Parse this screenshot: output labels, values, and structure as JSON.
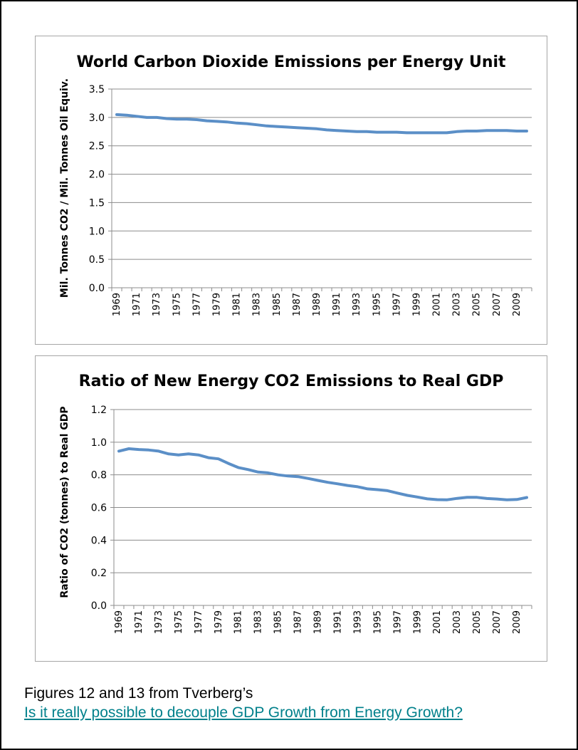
{
  "chart_data": [
    {
      "type": "line",
      "title": "World Carbon Dioxide Emissions per Energy Unit",
      "ylabel": "Mil. Tonnes CO2 / Mil. Tonnes Oil Equiv.",
      "xlabel": "",
      "ylim": [
        0,
        3.5
      ],
      "yticks": [
        "0.0",
        "0.5",
        "1.0",
        "1.5",
        "2.0",
        "2.5",
        "3.0",
        "3.5"
      ],
      "x": [
        1969,
        1970,
        1971,
        1972,
        1973,
        1974,
        1975,
        1976,
        1977,
        1978,
        1979,
        1980,
        1981,
        1982,
        1983,
        1984,
        1985,
        1986,
        1987,
        1988,
        1989,
        1990,
        1991,
        1992,
        1993,
        1994,
        1995,
        1996,
        1997,
        1998,
        1999,
        2000,
        2001,
        2002,
        2003,
        2004,
        2005,
        2006,
        2007,
        2008,
        2009,
        2010
      ],
      "xtick_labels": [
        "1969",
        "1971",
        "1973",
        "1975",
        "1977",
        "1979",
        "1981",
        "1983",
        "1985",
        "1987",
        "1989",
        "1991",
        "1993",
        "1995",
        "1997",
        "1999",
        "2001",
        "2003",
        "2005",
        "2007",
        "2009"
      ],
      "grid": true,
      "legend": "none",
      "line_color": "#5b8fc7",
      "series": [
        {
          "values": [
            3.05,
            3.04,
            3.02,
            3.0,
            3.0,
            2.98,
            2.97,
            2.97,
            2.96,
            2.94,
            2.93,
            2.92,
            2.9,
            2.89,
            2.87,
            2.85,
            2.84,
            2.83,
            2.82,
            2.81,
            2.8,
            2.78,
            2.77,
            2.76,
            2.75,
            2.75,
            2.74,
            2.74,
            2.74,
            2.73,
            2.73,
            2.73,
            2.73,
            2.73,
            2.75,
            2.76,
            2.76,
            2.77,
            2.77,
            2.77,
            2.76,
            2.76
          ]
        }
      ]
    },
    {
      "type": "line",
      "title": "Ratio of New Energy CO2 Emissions to Real GDP",
      "ylabel": "Ratio of CO2 (tonnes) to Real GDP",
      "xlabel": "",
      "ylim": [
        0,
        1.2
      ],
      "yticks": [
        "0.0",
        "0.2",
        "0.4",
        "0.6",
        "0.8",
        "1.0",
        "1.2"
      ],
      "x": [
        1969,
        1970,
        1971,
        1972,
        1973,
        1974,
        1975,
        1976,
        1977,
        1978,
        1979,
        1980,
        1981,
        1982,
        1983,
        1984,
        1985,
        1986,
        1987,
        1988,
        1989,
        1990,
        1991,
        1992,
        1993,
        1994,
        1995,
        1996,
        1997,
        1998,
        1999,
        2000,
        2001,
        2002,
        2003,
        2004,
        2005,
        2006,
        2007,
        2008,
        2009,
        2010
      ],
      "xtick_labels": [
        "1969",
        "1971",
        "1973",
        "1975",
        "1977",
        "1979",
        "1981",
        "1983",
        "1985",
        "1987",
        "1989",
        "1991",
        "1993",
        "1995",
        "1997",
        "1999",
        "2001",
        "2003",
        "2005",
        "2007",
        "2009"
      ],
      "grid": true,
      "legend": "none",
      "line_color": "#5b8fc7",
      "series": [
        {
          "values": [
            0.945,
            0.96,
            0.955,
            0.952,
            0.945,
            0.928,
            0.922,
            0.928,
            0.922,
            0.905,
            0.898,
            0.87,
            0.845,
            0.832,
            0.817,
            0.812,
            0.8,
            0.793,
            0.789,
            0.778,
            0.766,
            0.754,
            0.745,
            0.735,
            0.727,
            0.714,
            0.709,
            0.703,
            0.688,
            0.674,
            0.664,
            0.653,
            0.648,
            0.647,
            0.656,
            0.662,
            0.662,
            0.655,
            0.652,
            0.647,
            0.649,
            0.661
          ]
        }
      ]
    }
  ],
  "caption": {
    "line1": "Figures 12 and 13 from Tverberg’s",
    "link_text": "Is it really possible to decouple GDP Growth from Energy Growth?",
    "link_color": "#00808b"
  }
}
